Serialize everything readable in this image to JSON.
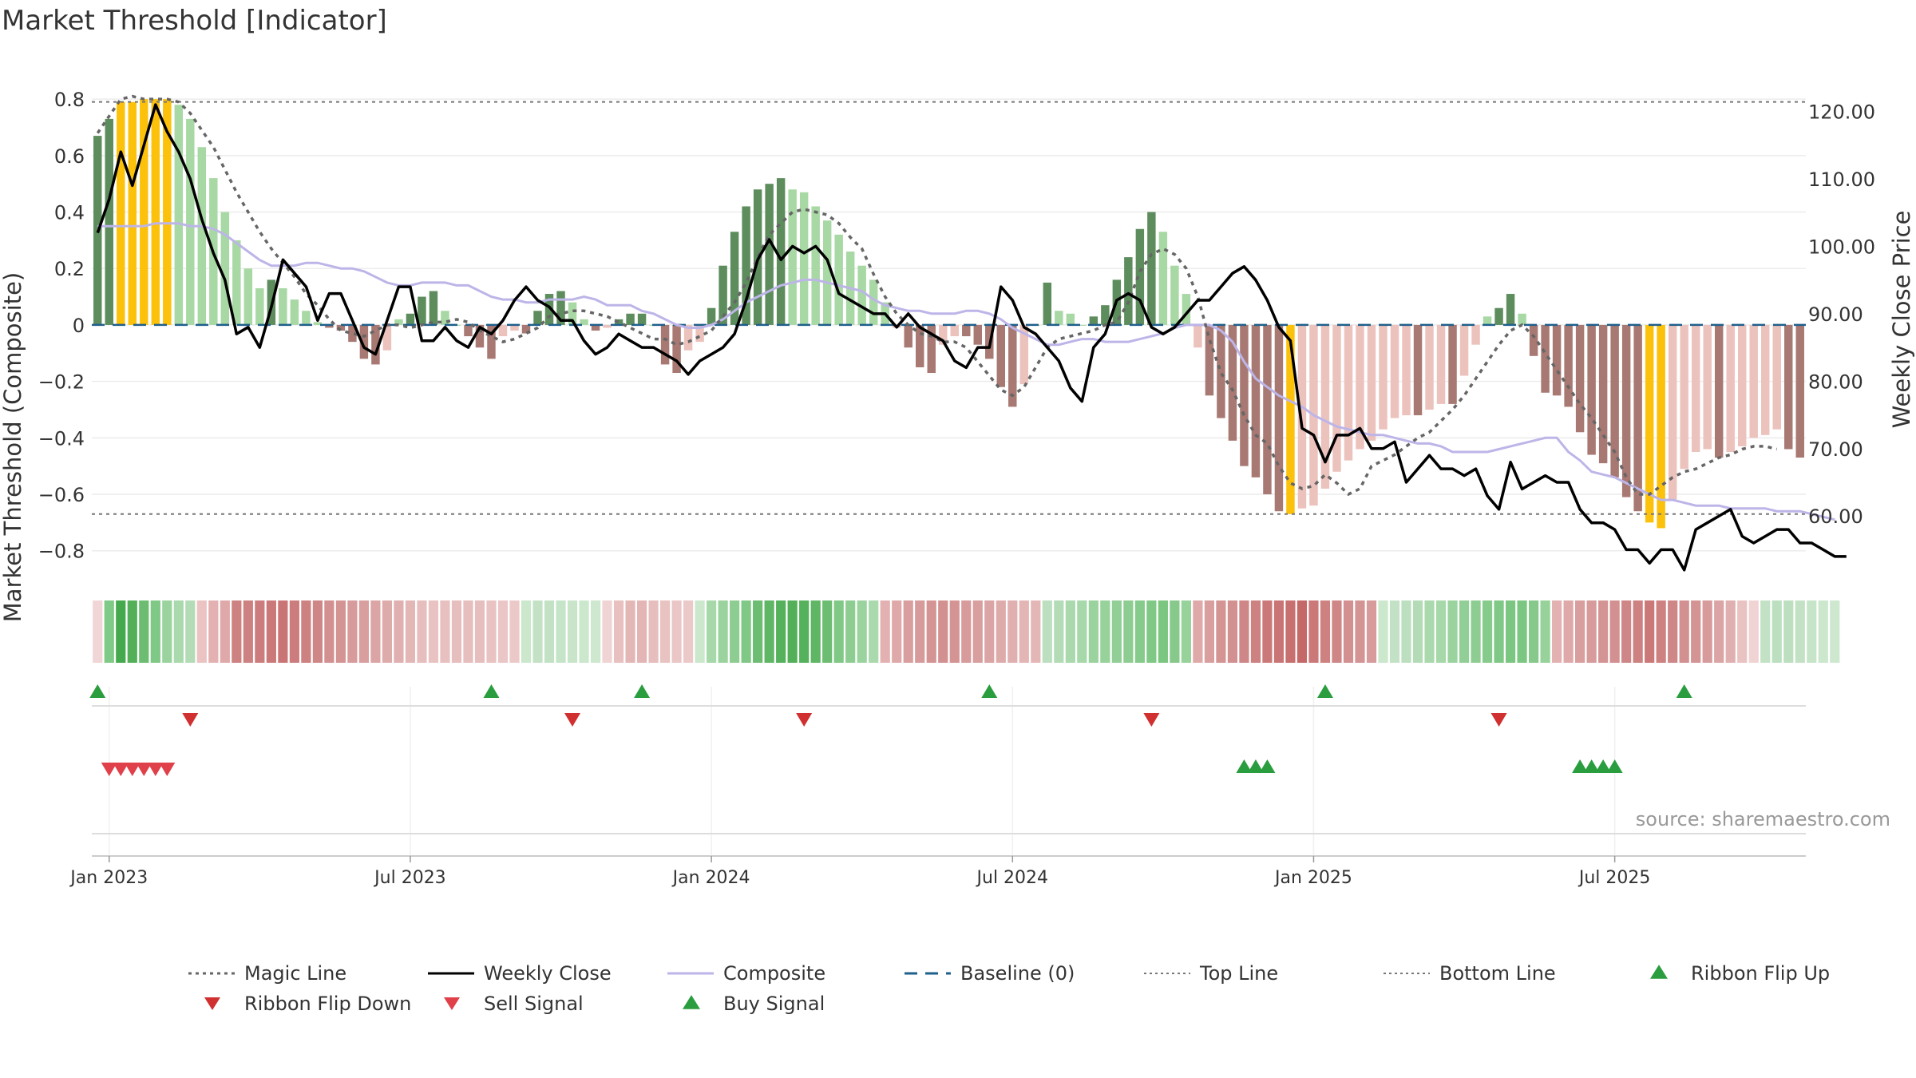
{
  "chart_data": {
    "type": "bar",
    "title": "Market Threshold [Indicator]",
    "ylabel": "Market Threshold (Composite)",
    "y2label": "Weekly Close Price",
    "ylim": [
      -0.88,
      0.84
    ],
    "y2lim": [
      51.5,
      123.5
    ],
    "y_ticks": [
      {
        "v": 0.8,
        "label": "0.8"
      },
      {
        "v": 0.6,
        "label": "0.6"
      },
      {
        "v": 0.4,
        "label": "0.4"
      },
      {
        "v": 0.2,
        "label": "0.2"
      },
      {
        "v": 0,
        "label": "0"
      },
      {
        "v": -0.2,
        "label": "−0.2"
      },
      {
        "v": -0.4,
        "label": "−0.4"
      },
      {
        "v": -0.6,
        "label": "−0.6"
      },
      {
        "v": -0.8,
        "label": "−0.8"
      }
    ],
    "y2_ticks": [
      {
        "v": 120,
        "label": "120.00"
      },
      {
        "v": 110,
        "label": "110.00"
      },
      {
        "v": 100,
        "label": "100.00"
      },
      {
        "v": 90,
        "label": "90.00"
      },
      {
        "v": 80,
        "label": "80.00"
      },
      {
        "v": 70,
        "label": "70.00"
      },
      {
        "v": 60,
        "label": "60.00"
      }
    ],
    "x_ticks": [
      {
        "week": 1,
        "label": "Jan 2023"
      },
      {
        "week": 27,
        "label": "Jul 2023"
      },
      {
        "week": 53,
        "label": "Jan 2024"
      },
      {
        "week": 79,
        "label": "Jul 2024"
      },
      {
        "week": 105,
        "label": "Jan 2025"
      },
      {
        "week": 131,
        "label": "Jul 2025"
      }
    ],
    "top_line": 0.79,
    "bottom_line": -0.67,
    "composite_bars": [
      0.67,
      0.73,
      0.79,
      0.79,
      0.8,
      0.8,
      0.8,
      0.78,
      0.73,
      0.63,
      0.52,
      0.4,
      0.3,
      0.2,
      0.13,
      0.16,
      0.13,
      0.09,
      0.05,
      0.01,
      -0.01,
      -0.02,
      -0.06,
      -0.12,
      -0.14,
      -0.09,
      0.02,
      0.04,
      0.1,
      0.12,
      0.05,
      0.0,
      -0.04,
      -0.08,
      -0.12,
      -0.04,
      -0.02,
      -0.03,
      0.05,
      0.11,
      0.12,
      0.08,
      0.02,
      -0.02,
      -0.01,
      0.02,
      0.04,
      0.04,
      0.0,
      -0.14,
      -0.17,
      -0.09,
      -0.06,
      0.06,
      0.21,
      0.33,
      0.42,
      0.48,
      0.5,
      0.52,
      0.48,
      0.47,
      0.42,
      0.37,
      0.32,
      0.26,
      0.21,
      0.16,
      0.08,
      -0.01,
      -0.08,
      -0.15,
      -0.17,
      -0.07,
      -0.04,
      -0.04,
      -0.07,
      -0.12,
      -0.22,
      -0.29,
      -0.21,
      0.0,
      0.15,
      0.05,
      0.04,
      0.0,
      0.03,
      0.07,
      0.16,
      0.24,
      0.34,
      0.4,
      0.33,
      0.21,
      0.11,
      -0.08,
      -0.25,
      -0.33,
      -0.41,
      -0.5,
      -0.54,
      -0.6,
      -0.66,
      -0.67,
      -0.65,
      -0.64,
      -0.58,
      -0.52,
      -0.48,
      -0.44,
      -0.41,
      -0.37,
      -0.33,
      -0.32,
      -0.32,
      -0.3,
      -0.28,
      -0.28,
      -0.18,
      -0.07,
      0.03,
      0.06,
      0.11,
      0.04,
      -0.11,
      -0.24,
      -0.25,
      -0.29,
      -0.38,
      -0.46,
      -0.49,
      -0.54,
      -0.61,
      -0.66,
      -0.7,
      -0.72,
      -0.62,
      -0.51,
      -0.45,
      -0.44,
      -0.47,
      -0.45,
      -0.43,
      -0.4,
      -0.39,
      -0.37,
      -0.44,
      -0.47
    ],
    "series": [
      {
        "name": "Weekly Close",
        "values": [
          102,
          107,
          114,
          109,
          115,
          121,
          117,
          114,
          110,
          104,
          99,
          95,
          87,
          88,
          85,
          91,
          98,
          96,
          94,
          89,
          93,
          93,
          89,
          85,
          84,
          89,
          94,
          94,
          86,
          86,
          88,
          86,
          85,
          88,
          87,
          89,
          92,
          94,
          92,
          91,
          89,
          89,
          86,
          84,
          85,
          87,
          86,
          85,
          85,
          84,
          83,
          81,
          83,
          84,
          85,
          87,
          92,
          98,
          101,
          98,
          100,
          99,
          100,
          98,
          93,
          92,
          91,
          90,
          90,
          88,
          90,
          88,
          87,
          86,
          83,
          82,
          85,
          85,
          94,
          92,
          88,
          87,
          85,
          83,
          79,
          77,
          85,
          87,
          92,
          93,
          92,
          88,
          87,
          88,
          90,
          92,
          92,
          94,
          96,
          97,
          95,
          92,
          88,
          86,
          73,
          72,
          68,
          72,
          72,
          73,
          70,
          70,
          71,
          65,
          67,
          69,
          67,
          67,
          66,
          67,
          63,
          61,
          68,
          64,
          65,
          66,
          65,
          65,
          61,
          59,
          59,
          58,
          55,
          55,
          53,
          55,
          55,
          52,
          58,
          59,
          60,
          61,
          57,
          56,
          57,
          58,
          58,
          56,
          56,
          55,
          54,
          54
        ]
      },
      {
        "name": "Composite",
        "values": [
          0.35,
          0.35,
          0.35,
          0.35,
          0.35,
          0.36,
          0.36,
          0.36,
          0.35,
          0.35,
          0.34,
          0.32,
          0.29,
          0.26,
          0.23,
          0.21,
          0.21,
          0.21,
          0.22,
          0.22,
          0.21,
          0.2,
          0.2,
          0.19,
          0.17,
          0.15,
          0.14,
          0.14,
          0.15,
          0.15,
          0.15,
          0.14,
          0.14,
          0.12,
          0.1,
          0.09,
          0.09,
          0.08,
          0.08,
          0.09,
          0.09,
          0.09,
          0.1,
          0.09,
          0.07,
          0.07,
          0.07,
          0.05,
          0.04,
          0.02,
          0.0,
          -0.01,
          -0.01,
          0.0,
          0.02,
          0.05,
          0.08,
          0.1,
          0.12,
          0.14,
          0.15,
          0.16,
          0.16,
          0.15,
          0.14,
          0.13,
          0.12,
          0.09,
          0.07,
          0.06,
          0.05,
          0.05,
          0.04,
          0.04,
          0.04,
          0.05,
          0.05,
          0.04,
          0.02,
          -0.01,
          -0.03,
          -0.05,
          -0.07,
          -0.07,
          -0.06,
          -0.05,
          -0.05,
          -0.06,
          -0.06,
          -0.06,
          -0.05,
          -0.04,
          -0.03,
          -0.01,
          0.0,
          0.0,
          0.0,
          -0.02,
          -0.06,
          -0.13,
          -0.19,
          -0.22,
          -0.25,
          -0.27,
          -0.29,
          -0.32,
          -0.34,
          -0.36,
          -0.37,
          -0.38,
          -0.39,
          -0.39,
          -0.4,
          -0.41,
          -0.42,
          -0.42,
          -0.43,
          -0.45,
          -0.45,
          -0.45,
          -0.45,
          -0.44,
          -0.43,
          -0.42,
          -0.41,
          -0.4,
          -0.4,
          -0.45,
          -0.48,
          -0.52,
          -0.53,
          -0.54,
          -0.56,
          -0.58,
          -0.6,
          -0.62,
          -0.62,
          -0.63,
          -0.64,
          -0.64,
          -0.64,
          -0.65,
          -0.65,
          -0.65,
          -0.65,
          -0.66,
          -0.66,
          -0.66,
          -0.67,
          -0.68,
          -0.69
        ]
      },
      {
        "name": "Magic Line",
        "values": [
          0.68,
          0.74,
          0.8,
          0.81,
          0.8,
          0.8,
          0.8,
          0.79,
          0.75,
          0.69,
          0.63,
          0.55,
          0.47,
          0.4,
          0.33,
          0.27,
          0.22,
          0.17,
          0.11,
          0.07,
          0.02,
          -0.02,
          -0.03,
          -0.04,
          -0.02,
          0.0,
          0.0,
          -0.01,
          0.0,
          0.01,
          0.01,
          0.02,
          0.01,
          -0.02,
          -0.04,
          -0.06,
          -0.05,
          -0.03,
          -0.01,
          0.03,
          0.04,
          0.05,
          0.05,
          0.04,
          0.03,
          0.01,
          -0.01,
          -0.03,
          -0.05,
          -0.05,
          -0.07,
          -0.06,
          -0.04,
          -0.02,
          0.03,
          0.08,
          0.15,
          0.24,
          0.32,
          0.36,
          0.4,
          0.41,
          0.4,
          0.39,
          0.36,
          0.31,
          0.27,
          0.18,
          0.1,
          0.04,
          0.0,
          -0.03,
          -0.04,
          -0.06,
          -0.06,
          -0.08,
          -0.13,
          -0.18,
          -0.23,
          -0.25,
          -0.22,
          -0.15,
          -0.08,
          -0.05,
          -0.04,
          -0.03,
          -0.02,
          0.0,
          0.01,
          0.08,
          0.19,
          0.25,
          0.27,
          0.25,
          0.2,
          0.1,
          -0.05,
          -0.17,
          -0.23,
          -0.32,
          -0.39,
          -0.42,
          -0.5,
          -0.56,
          -0.58,
          -0.57,
          -0.53,
          -0.56,
          -0.6,
          -0.58,
          -0.5,
          -0.48,
          -0.46,
          -0.43,
          -0.4,
          -0.38,
          -0.34,
          -0.3,
          -0.25,
          -0.19,
          -0.13,
          -0.07,
          -0.02,
          0.0,
          -0.04,
          -0.1,
          -0.16,
          -0.22,
          -0.28,
          -0.33,
          -0.39,
          -0.45,
          -0.54,
          -0.6,
          -0.6,
          -0.57,
          -0.54,
          -0.52,
          -0.51,
          -0.49,
          -0.47,
          -0.46,
          -0.44,
          -0.43,
          -0.43,
          -0.44
        ]
      }
    ],
    "ribbon_colors": [
      "#f0d6d6",
      "#7fca86",
      "#45a94e",
      "#53b059",
      "#6cbd72",
      "#7fc885",
      "#9bd39e",
      "#a9d9ad",
      "#b3dcb6",
      "#ecc3c3",
      "#e3b1b1",
      "#e0a9a9",
      "#cd8181",
      "#cd8181",
      "#cc7c7c",
      "#cb7878",
      "#ca7575",
      "#cc7c7c",
      "#cd8181",
      "#cf8686",
      "#d29090",
      "#d49494",
      "#d79b9b",
      "#d99e9e",
      "#dba5a5",
      "#deabab",
      "#e0b0b0",
      "#e4b7b7",
      "#e6bebe",
      "#e9c2c2",
      "#e8c0c0",
      "#e6bebe",
      "#e6bebe",
      "#e6bebe",
      "#e9c2c2",
      "#ebc6c6",
      "#ecc9c9",
      "#cbe7cc",
      "#c3e2c5",
      "#c3e2c5",
      "#c6e4c8",
      "#c8e5ca",
      "#cbe7cc",
      "#cde8cf",
      "#f0d4d4",
      "#e8c0c0",
      "#e4b7b7",
      "#e3b5b5",
      "#e6bebe",
      "#e9c2c2",
      "#ebc6c6",
      "#ecc9c9",
      "#cbe7cc",
      "#a6d8a9",
      "#9bd39e",
      "#8ecd92",
      "#7fc885",
      "#6cbd72",
      "#5fb665",
      "#55b15b",
      "#53b059",
      "#55b15b",
      "#5fb665",
      "#6cbd72",
      "#7fc885",
      "#8ecd92",
      "#9bd39e",
      "#a9d9ad",
      "#e3b1b1",
      "#e0a9a9",
      "#d99e9e",
      "#d79b9b",
      "#d49494",
      "#d29090",
      "#d49494",
      "#d79b9b",
      "#d99e9e",
      "#dba5a5",
      "#deabab",
      "#e0b0b0",
      "#e3b5b5",
      "#e4b7b7",
      "#bcdfbf",
      "#b3dcb6",
      "#a9d9ad",
      "#a6d8a9",
      "#9bd39e",
      "#98d29b",
      "#92cf96",
      "#8ecd92",
      "#87cb8c",
      "#7fc885",
      "#7bc680",
      "#86c98b",
      "#98d29b",
      "#e0a9a9",
      "#d99e9e",
      "#d49494",
      "#d29090",
      "#cf8686",
      "#cd8181",
      "#cb7878",
      "#ca7575",
      "#c86f6f",
      "#c56868",
      "#cb7878",
      "#cd8181",
      "#cf8686",
      "#d29090",
      "#d49494",
      "#d79b9b",
      "#cbe7cc",
      "#c3e2c5",
      "#bcdfbf",
      "#b3dcb6",
      "#a9d9ad",
      "#a6d8a9",
      "#9bd39e",
      "#92cf96",
      "#8ecd92",
      "#87cb8c",
      "#7fc885",
      "#7bc680",
      "#7bc680",
      "#86c98b",
      "#98d29b",
      "#e3b1b1",
      "#e0a9a9",
      "#d99e9e",
      "#d79b9b",
      "#d49494",
      "#d29090",
      "#cf8686",
      "#cd8181",
      "#cb7878",
      "#cd8181",
      "#cf8686",
      "#d29090",
      "#d49494",
      "#d79b9b",
      "#dba5a5",
      "#e0b0b0",
      "#e9c2c2",
      "#f0d4d4",
      "#c3e2c5",
      "#bcdfbf",
      "#bcdfbf",
      "#c3e2c5",
      "#c6e4c8",
      "#cbe7cc",
      "#cde8cf"
    ],
    "ribbon_flip_up_weeks": [
      0,
      34,
      47,
      77,
      106,
      137
    ],
    "ribbon_flip_down_weeks": [
      8,
      41,
      61,
      91,
      121
    ],
    "sell_signal_weeks": [
      1,
      2,
      3,
      4,
      5,
      6
    ],
    "buy_signal_weeks": [
      99,
      100,
      101,
      128,
      129,
      130,
      131
    ],
    "source_label": "source: sharemaestro.com",
    "legend": [
      {
        "label": "Magic Line",
        "kind": "dotted",
        "color": "#666666"
      },
      {
        "label": "Weekly Close",
        "kind": "solid",
        "color": "#000000"
      },
      {
        "label": "Composite",
        "kind": "solid-thin",
        "color": "#bdb5e8"
      },
      {
        "label": "Baseline (0)",
        "kind": "dashed",
        "color": "#1f5f8b"
      },
      {
        "label": "Top Line",
        "kind": "dotted-thin",
        "color": "#777777"
      },
      {
        "label": "Bottom Line",
        "kind": "dotted-thin",
        "color": "#777777"
      },
      {
        "label": "Ribbon Flip Up",
        "kind": "tri-up",
        "color": "#2a9d3f"
      },
      {
        "label": "Ribbon Flip Down",
        "kind": "tri-down",
        "color": "#d03030"
      },
      {
        "label": "Sell Signal",
        "kind": "tri-down",
        "color": "#e0404a"
      },
      {
        "label": "Buy Signal",
        "kind": "tri-up",
        "color": "#2a9d3f"
      }
    ],
    "colors": {
      "bull_light": "#a8d8a4",
      "bull_dark": "#5d8d5d",
      "bear_light": "#ecc2bd",
      "bear_dark": "#a87872",
      "extreme": "#fcc10a"
    }
  }
}
